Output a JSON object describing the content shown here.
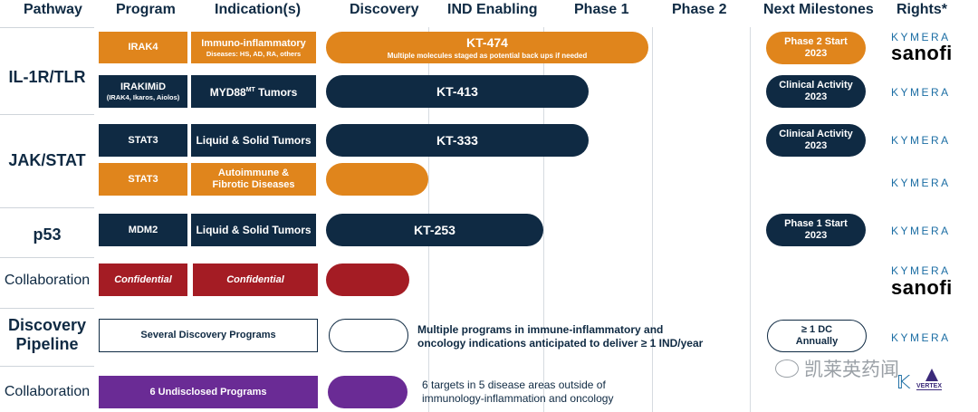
{
  "headers": {
    "pathway": "Pathway",
    "program": "Program",
    "indications": "Indication(s)",
    "discovery": "Discovery",
    "ind_enabling": "IND Enabling",
    "phase1": "Phase 1",
    "phase2": "Phase 2",
    "next_milestones": "Next Milestones",
    "rights": "Rights*"
  },
  "pathways": {
    "il1r": "IL-1R/TLR",
    "jakstat": "JAK/STAT",
    "p53": "p53",
    "collab1": "Collaboration",
    "discovery_line1": "Discovery",
    "discovery_line2": "Pipeline",
    "collab2": "Collaboration"
  },
  "rows": [
    {
      "program": "IRAK4",
      "indication": "Immuno-inflammatory",
      "indication_sub": "Diseases: HS, AD, RA, others",
      "color": "#e0851c",
      "bar_label": "KT-474",
      "bar_sub": "Multiple molecules staged as potential back ups if needed",
      "progress_phase": 2.55,
      "milestone_line1": "Phase 2 Start",
      "milestone_line2": "2023",
      "rights": [
        "KYMERA",
        "sanofi"
      ]
    },
    {
      "program": "IRAKIMiD",
      "program_sub": "(IRAK4, Ikaros, Aiolos)",
      "indication": "MYD88",
      "indication_sup": "MT",
      "indication_rest": " Tumors",
      "color": "#0f2a43",
      "bar_label": "KT-413",
      "progress_phase": 2.35,
      "milestone_line1": "Clinical Activity",
      "milestone_line2": "2023",
      "rights": [
        "KYMERA"
      ]
    },
    {
      "program": "STAT3",
      "indication": "Liquid & Solid Tumors",
      "color": "#0f2a43",
      "bar_label": "KT-333",
      "progress_phase": 2.35,
      "milestone_line1": "Clinical Activity",
      "milestone_line2": "2023",
      "rights": [
        "KYMERA"
      ]
    },
    {
      "program": "STAT3",
      "indication": "Autoimmune &",
      "indication_line2": "Fibrotic Diseases",
      "color": "#e0851c",
      "progress_phase": 1.0,
      "rights": [
        "KYMERA"
      ]
    },
    {
      "program": "MDM2",
      "indication": "Liquid & Solid Tumors",
      "color": "#0f2a43",
      "bar_label": "KT-253",
      "progress_phase": 2.0,
      "milestone_line1": "Phase 1 Start",
      "milestone_line2": "2023",
      "rights": [
        "KYMERA"
      ]
    },
    {
      "program": "Confidential",
      "indication": "Confidential",
      "color": "#a41c24",
      "progress_phase": 0.78,
      "rights": [
        "KYMERA",
        "sanofi"
      ]
    },
    {
      "program": "Several Discovery Programs",
      "color": "#ffffff",
      "note_line1": "Multiple programs in immune-inflammatory and",
      "note_line2": "oncology indications anticipated to deliver ≥ 1 IND/year",
      "milestone_line1": "≥ 1 DC",
      "milestone_line2": "Annually",
      "rights": [
        "KYMERA"
      ]
    },
    {
      "program": "6 Undisclosed Programs",
      "color": "#6a2b95",
      "note_line1": "6 targets in 5 disease areas outside of",
      "note_line2": "immunology-inflammation and oncology",
      "rights": [
        "VERTEX"
      ]
    }
  ],
  "watermark": "凯莱英药闻"
}
